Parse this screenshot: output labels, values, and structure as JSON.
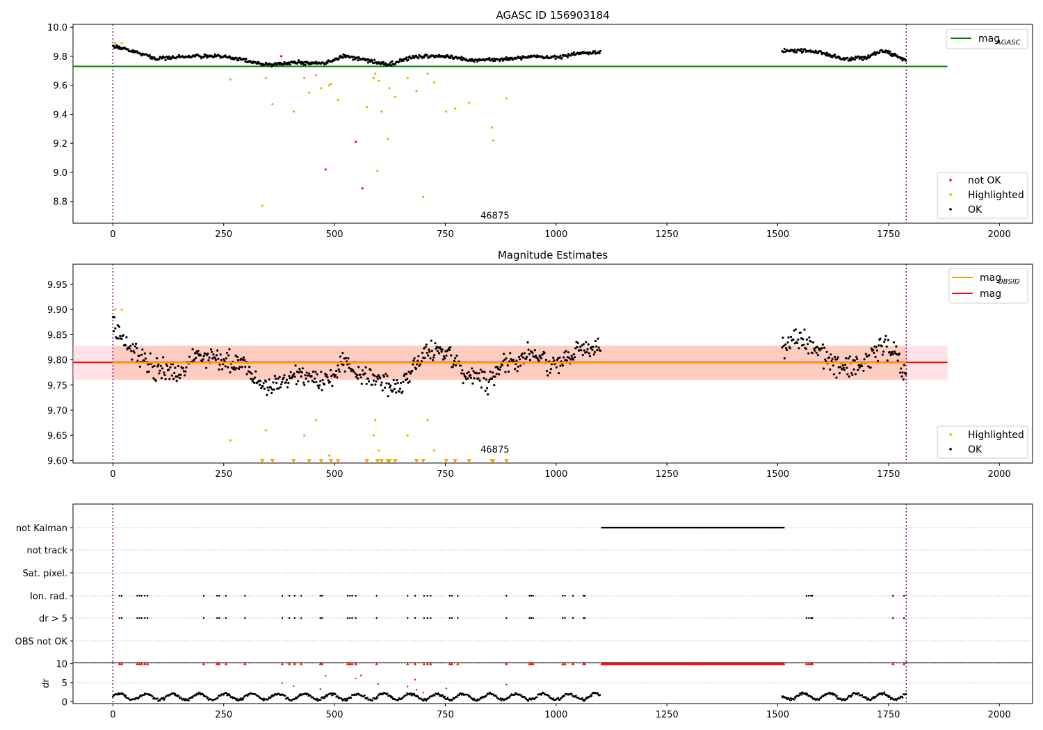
{
  "chart_data": [
    {
      "type": "scatter",
      "title": "AGASC ID 156903184",
      "xlim": [
        -90,
        2075
      ],
      "ylim": [
        8.65,
        10.02
      ],
      "xticks": [
        0,
        250,
        500,
        750,
        1000,
        1250,
        1500,
        1750,
        2000
      ],
      "yticks": [
        8.8,
        9.0,
        9.2,
        9.4,
        9.6,
        9.8,
        10.0
      ],
      "ytick_labels": [
        "8.8",
        "9.0",
        "9.2",
        "9.4",
        "9.6",
        "9.8",
        "10.0"
      ],
      "hline": {
        "name": "mag",
        "subscript": "AGASC",
        "value": 9.73,
        "x_range": [
          -90,
          1883
        ],
        "color": "#008000"
      },
      "vlines": [
        0,
        1790
      ],
      "annotation": {
        "text": "46875",
        "x": 862,
        "y": 8.68
      },
      "legend_top": {
        "items": [
          {
            "label": "mag",
            "subscript": "AGASC",
            "color": "#008000"
          }
        ],
        "placement": "top-right"
      },
      "legend_bottom": {
        "items": [
          {
            "label": "not OK",
            "color": "#ff0000"
          },
          {
            "label": "Highlighted",
            "color": "#ffa500"
          },
          {
            "label": "OK",
            "color": "#000000"
          }
        ],
        "placement": "bottom-right"
      },
      "ok_segments": [
        {
          "x_range": [
            0,
            1100
          ],
          "knots": [
            [
              0,
              9.87
            ],
            [
              40,
              9.84
            ],
            [
              100,
              9.78
            ],
            [
              180,
              9.8
            ],
            [
              250,
              9.8
            ],
            [
              300,
              9.77
            ],
            [
              350,
              9.74
            ],
            [
              420,
              9.76
            ],
            [
              480,
              9.75
            ],
            [
              520,
              9.8
            ],
            [
              560,
              9.78
            ],
            [
              620,
              9.74
            ],
            [
              680,
              9.8
            ],
            [
              760,
              9.8
            ],
            [
              800,
              9.77
            ],
            [
              880,
              9.78
            ],
            [
              950,
              9.8
            ],
            [
              1000,
              9.79
            ],
            [
              1050,
              9.82
            ],
            [
              1100,
              9.83
            ]
          ]
        },
        {
          "x_range": [
            1510,
            1790
          ],
          "knots": [
            [
              1510,
              9.84
            ],
            [
              1560,
              9.84
            ],
            [
              1600,
              9.82
            ],
            [
              1650,
              9.78
            ],
            [
              1700,
              9.79
            ],
            [
              1740,
              9.84
            ],
            [
              1790,
              9.77
            ]
          ]
        }
      ],
      "highlighted_points": [
        [
          5,
          9.89
        ],
        [
          20,
          9.89
        ],
        [
          265,
          9.64
        ],
        [
          337,
          8.77
        ],
        [
          345,
          9.65
        ],
        [
          360,
          9.47
        ],
        [
          408,
          9.42
        ],
        [
          432,
          9.65
        ],
        [
          443,
          9.55
        ],
        [
          458,
          9.67
        ],
        [
          470,
          9.58
        ],
        [
          488,
          9.6
        ],
        [
          492,
          9.61
        ],
        [
          508,
          9.5
        ],
        [
          573,
          9.45
        ],
        [
          588,
          9.65
        ],
        [
          592,
          9.68
        ],
        [
          597,
          9.01
        ],
        [
          600,
          9.63
        ],
        [
          606,
          9.42
        ],
        [
          620,
          9.23
        ],
        [
          624,
          9.58
        ],
        [
          637,
          9.52
        ],
        [
          665,
          9.65
        ],
        [
          685,
          9.56
        ],
        [
          700,
          8.83
        ],
        [
          710,
          9.68
        ],
        [
          725,
          9.62
        ],
        [
          752,
          9.42
        ],
        [
          772,
          9.44
        ],
        [
          804,
          9.48
        ],
        [
          855,
          9.31
        ],
        [
          858,
          9.22
        ],
        [
          888,
          9.51
        ]
      ],
      "not_ok_points": [
        [
          380,
          9.8
        ],
        [
          480,
          9.02
        ],
        [
          548,
          9.21
        ],
        [
          563,
          8.89
        ]
      ]
    },
    {
      "type": "scatter",
      "title": "Magnitude Estimates",
      "xlim": [
        -90,
        2075
      ],
      "ylim": [
        9.595,
        9.99
      ],
      "xticks": [
        0,
        250,
        500,
        750,
        1000,
        1250,
        1500,
        1750,
        2000
      ],
      "yticks": [
        9.6,
        9.65,
        9.7,
        9.75,
        9.8,
        9.85,
        9.9,
        9.95
      ],
      "ytick_labels": [
        "9.60",
        "9.65",
        "9.70",
        "9.75",
        "9.80",
        "9.85",
        "9.90",
        "9.95"
      ],
      "mag_line": {
        "name": "mag",
        "value": 9.795,
        "color": "#ff0000"
      },
      "mag_obsid_line": {
        "name": "mag",
        "subscript": "OBSID",
        "value": 9.794,
        "x_range": [
          0,
          1790
        ],
        "color": "#ffa500"
      },
      "band_outer": {
        "range": [
          9.76,
          9.828
        ],
        "x_range": [
          -90,
          1883
        ],
        "color": "#ffc0cb"
      },
      "band_inner": {
        "range": [
          9.76,
          9.828
        ],
        "x_range": [
          0,
          1790
        ],
        "color": "#ffa07a"
      },
      "vlines": [
        0,
        1790
      ],
      "annotation": {
        "text": "46875",
        "x": 862,
        "y": 9.605
      },
      "legend_top": {
        "items": [
          {
            "label": "mag",
            "subscript": "OBSID",
            "color": "#ffa500"
          },
          {
            "label": "mag",
            "color": "#ff0000"
          }
        ],
        "placement": "top-right"
      },
      "legend_bottom": {
        "items": [
          {
            "label": "Highlighted",
            "color": "#ffa500"
          },
          {
            "label": "OK",
            "color": "#000000"
          }
        ],
        "placement": "bottom-right"
      },
      "ok_segments": [
        {
          "x_range": [
            0,
            1100
          ],
          "knots": [
            [
              0,
              9.87
            ],
            [
              30,
              9.83
            ],
            [
              60,
              9.81
            ],
            [
              100,
              9.78
            ],
            [
              150,
              9.77
            ],
            [
              190,
              9.81
            ],
            [
              250,
              9.8
            ],
            [
              300,
              9.79
            ],
            [
              330,
              9.75
            ],
            [
              370,
              9.75
            ],
            [
              420,
              9.77
            ],
            [
              460,
              9.76
            ],
            [
              500,
              9.77
            ],
            [
              520,
              9.8
            ],
            [
              560,
              9.77
            ],
            [
              600,
              9.76
            ],
            [
              650,
              9.74
            ],
            [
              680,
              9.79
            ],
            [
              720,
              9.82
            ],
            [
              760,
              9.81
            ],
            [
              800,
              9.77
            ],
            [
              850,
              9.76
            ],
            [
              880,
              9.79
            ],
            [
              940,
              9.81
            ],
            [
              1000,
              9.79
            ],
            [
              1050,
              9.82
            ],
            [
              1100,
              9.82
            ]
          ]
        },
        {
          "x_range": [
            1510,
            1790
          ],
          "knots": [
            [
              1510,
              9.83
            ],
            [
              1560,
              9.84
            ],
            [
              1610,
              9.8
            ],
            [
              1650,
              9.78
            ],
            [
              1700,
              9.8
            ],
            [
              1750,
              9.83
            ],
            [
              1790,
              9.77
            ]
          ]
        }
      ],
      "highlighted_points": [
        [
          5,
          9.9
        ],
        [
          20,
          9.9
        ],
        [
          265,
          9.64
        ],
        [
          345,
          9.66
        ],
        [
          432,
          9.65
        ],
        [
          458,
          9.68
        ],
        [
          488,
          9.61
        ],
        [
          588,
          9.65
        ],
        [
          592,
          9.68
        ],
        [
          600,
          9.62
        ],
        [
          665,
          9.65
        ],
        [
          710,
          9.68
        ],
        [
          725,
          9.62
        ]
      ],
      "clipped_marker_x": [
        337,
        360,
        408,
        443,
        470,
        492,
        508,
        573,
        597,
        606,
        620,
        624,
        637,
        685,
        700,
        752,
        772,
        804,
        855,
        858,
        888
      ]
    },
    {
      "type": "scatter",
      "xlim": [
        -90,
        2075
      ],
      "categories": [
        "not Kalman",
        "not track",
        "Sat. pixel.",
        "Ion. rad.",
        "dr > 5",
        "OBS not OK"
      ],
      "vlines": [
        0,
        1790
      ],
      "not_kalman_range": [
        1103,
        1515
      ],
      "flag_x": [
        15,
        20,
        55,
        60,
        65,
        72,
        78,
        205,
        235,
        240,
        255,
        298,
        382,
        398,
        410,
        425,
        468,
        472,
        530,
        535,
        540,
        548,
        595,
        665,
        682,
        702,
        710,
        717,
        760,
        765,
        778,
        888,
        940,
        944,
        948,
        1015,
        1020,
        1038,
        1062,
        1065,
        1565,
        1570,
        1575,
        1578,
        1760,
        1785
      ]
    },
    {
      "type": "scatter",
      "ylabel": "dr",
      "xlim": [
        -90,
        2075
      ],
      "ylim": [
        -0.5,
        10.3
      ],
      "xticks": [
        0,
        250,
        500,
        750,
        1000,
        1250,
        1500,
        1750,
        2000
      ],
      "yticks": [
        0,
        5,
        10
      ],
      "ytick_labels": [
        "0",
        "5",
        "10"
      ],
      "vlines": [
        0,
        1790
      ],
      "ok_segments": [
        {
          "x_range": [
            0,
            1100
          ],
          "base": 1.3
        },
        {
          "x_range": [
            1510,
            1790
          ],
          "base": 1.4
        }
      ],
      "red_points": [
        [
          382,
          4.9
        ],
        [
          408,
          4.1
        ],
        [
          468,
          3.3
        ],
        [
          480,
          6.8
        ],
        [
          548,
          6.1
        ],
        [
          560,
          6.9
        ],
        [
          598,
          4.6
        ],
        [
          665,
          4.0
        ],
        [
          682,
          5.8
        ],
        [
          685,
          3.1
        ],
        [
          700,
          2.4
        ],
        [
          752,
          3.5
        ],
        [
          888,
          4.5
        ]
      ],
      "capped_value": 10,
      "capped_x": [
        15,
        20,
        55,
        60,
        65,
        72,
        78,
        205,
        235,
        240,
        255,
        298,
        382,
        398,
        410,
        425,
        468,
        472,
        530,
        535,
        540,
        548,
        595,
        665,
        682,
        702,
        710,
        717,
        760,
        765,
        778,
        888,
        940,
        944,
        948,
        1015,
        1020,
        1038,
        1062,
        1065,
        1565,
        1570,
        1575,
        1578,
        1760,
        1785
      ],
      "capped_range": [
        1103,
        1515
      ]
    }
  ]
}
